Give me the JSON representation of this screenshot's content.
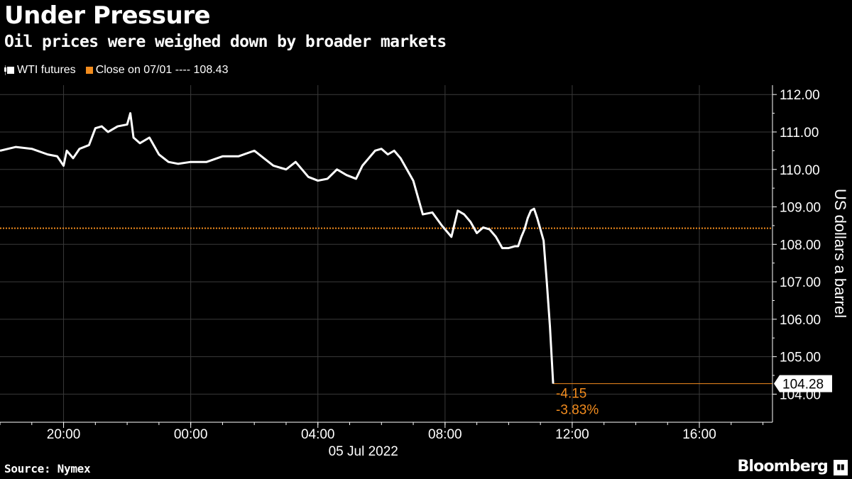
{
  "chart_data": {
    "type": "line",
    "title": "Under Pressure",
    "subtitle": "Oil prices were weighed down by broader markets",
    "ylabel": "US dollars a barrel",
    "xlabel": "05 Jul 2022",
    "ylim": [
      103.25,
      112.25
    ],
    "xlim_hours": [
      18,
      42.3
    ],
    "y_ticks": [
      "112.00",
      "111.00",
      "110.00",
      "109.00",
      "108.00",
      "107.00",
      "106.00",
      "105.00",
      "104.00"
    ],
    "x_ticks": [
      "20:00",
      "00:00",
      "04:00",
      "08:00",
      "12:00",
      "16:00"
    ],
    "legend": {
      "series_label": "WTI futures",
      "close_label": "Close on 07/01 ---- 108.43"
    },
    "close_value": 108.43,
    "last_value_label": "104.28",
    "change_label": "-4.15",
    "change_pct_label": "-3.83%",
    "colors": {
      "series": "#ffffff",
      "close": "#f28c1e",
      "background": "#000000",
      "grid": "#3a3a3a"
    },
    "grid": true,
    "series": [
      {
        "name": "WTI futures",
        "hours": [
          18.0,
          18.5,
          19.0,
          19.5,
          19.8,
          20.0,
          20.1,
          20.3,
          20.5,
          20.8,
          21.0,
          21.2,
          21.4,
          21.7,
          22.0,
          22.1,
          22.2,
          22.4,
          22.7,
          23.0,
          23.3,
          23.6,
          24.0,
          24.5,
          25.0,
          25.5,
          26.0,
          26.3,
          26.6,
          27.0,
          27.3,
          27.7,
          28.0,
          28.3,
          28.6,
          28.9,
          29.2,
          29.4,
          29.6,
          29.8,
          30.0,
          30.2,
          30.4,
          30.6,
          30.8,
          31.0,
          31.3,
          31.6,
          31.9,
          32.2,
          32.4,
          32.6,
          32.8,
          33.0,
          33.2,
          33.4,
          33.6,
          33.8,
          34.0,
          34.2,
          34.3,
          34.4,
          34.5,
          34.6,
          34.7,
          34.8,
          34.9,
          35.0,
          35.1,
          35.2,
          35.3,
          35.4
        ],
        "values": [
          110.5,
          110.6,
          110.55,
          110.4,
          110.35,
          110.1,
          110.5,
          110.3,
          110.55,
          110.65,
          111.1,
          111.15,
          111.0,
          111.15,
          111.2,
          111.5,
          110.85,
          110.7,
          110.85,
          110.4,
          110.2,
          110.15,
          110.2,
          110.2,
          110.35,
          110.35,
          110.5,
          110.3,
          110.1,
          110.0,
          110.2,
          109.8,
          109.7,
          109.75,
          110.0,
          109.85,
          109.75,
          110.1,
          110.3,
          110.5,
          110.55,
          110.4,
          110.5,
          110.3,
          110.0,
          109.7,
          108.8,
          108.85,
          108.5,
          108.2,
          108.9,
          108.8,
          108.6,
          108.3,
          108.45,
          108.4,
          108.2,
          107.9,
          107.9,
          107.95,
          107.95,
          108.2,
          108.4,
          108.7,
          108.9,
          108.95,
          108.7,
          108.4,
          108.1,
          107.0,
          105.8,
          104.28
        ]
      }
    ]
  }
}
